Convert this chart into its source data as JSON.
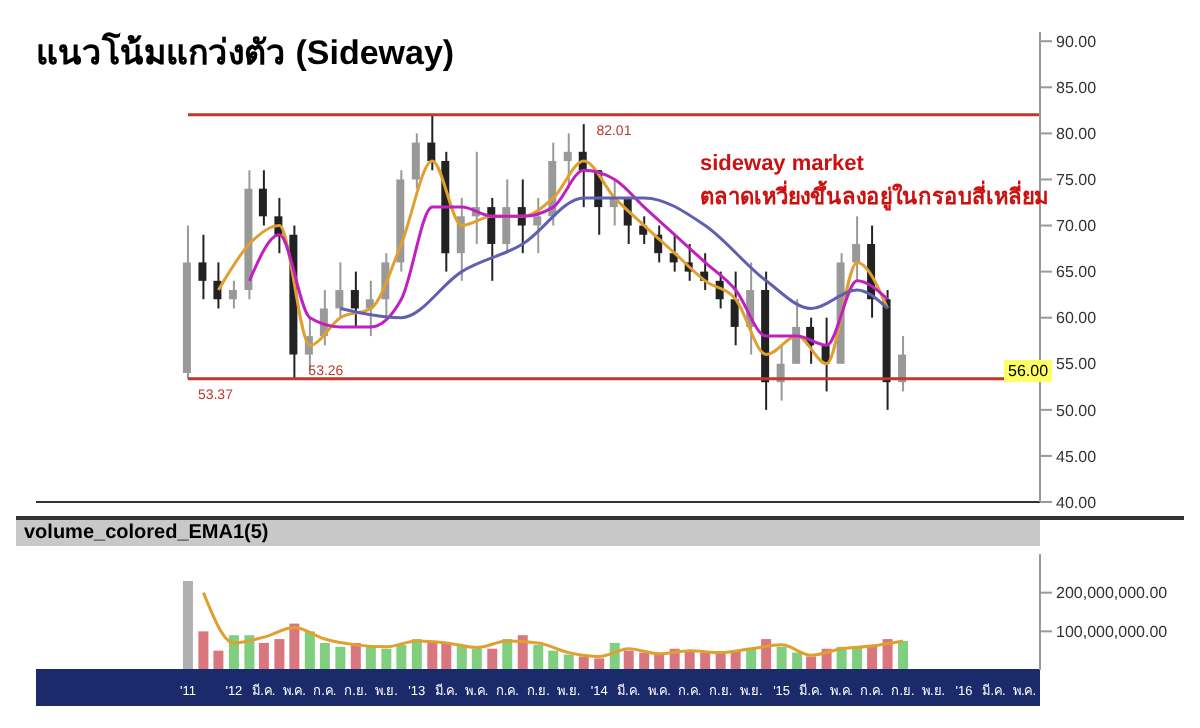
{
  "chart_data": [
    {
      "type": "candlestick",
      "title": "แนวโน้มแกว่งตัว (Sideway)",
      "tick_labels": "y",
      "colors": [
        "#999999",
        "#222222",
        "#222222",
        "#999999",
        "#999999",
        "#222222",
        "#222222",
        "#222222",
        "#999999",
        "#999999",
        "#999999",
        "#222222",
        "#999999",
        "#999999",
        "#999999",
        "#999999",
        "#222222",
        "#222222",
        "#999999",
        "#999999",
        "#222222",
        "#999999",
        "#222222",
        "#999999",
        "#999999",
        "#999999",
        "#222222",
        "#222222",
        "#999999",
        "#222222",
        "#222222",
        "#222222",
        "#222222",
        "#222222",
        "#222222",
        "#222222",
        "#222222",
        "#999999",
        "#222222",
        "#999999",
        "#999999",
        "#222222",
        "#222222",
        "#999999",
        "#999999",
        "#222222",
        "#222222",
        "#999999"
      ],
      "x": [
        "2011-10",
        "2011-11",
        "2011-12",
        "2012-01",
        "2012-02",
        "2012-03",
        "2012-04",
        "2012-05",
        "2012-06",
        "2012-07",
        "2012-08",
        "2012-09",
        "2012-10",
        "2012-11",
        "2012-12",
        "2013-01",
        "2013-02",
        "2013-03",
        "2013-04",
        "2013-05",
        "2013-06",
        "2013-07",
        "2013-08",
        "2013-09",
        "2013-10",
        "2013-11",
        "2013-12",
        "2014-01",
        "2014-02",
        "2014-03",
        "2014-04",
        "2014-05",
        "2014-06",
        "2014-07",
        "2014-08",
        "2014-09",
        "2014-10",
        "2014-11",
        "2014-12",
        "2015-01",
        "2015-02",
        "2015-03",
        "2015-04",
        "2015-05",
        "2015-06",
        "2015-07",
        "2015-08",
        "2015-09"
      ],
      "ohlc": [
        [
          54,
          70,
          53.37,
          66
        ],
        [
          66,
          69,
          62,
          64
        ],
        [
          64,
          66,
          61,
          62
        ],
        [
          62,
          64,
          61,
          63
        ],
        [
          63,
          76,
          62,
          74
        ],
        [
          74,
          76,
          70,
          71
        ],
        [
          71,
          73,
          67,
          69
        ],
        [
          69,
          70,
          53.26,
          56
        ],
        [
          56,
          60,
          54,
          58
        ],
        [
          58,
          63,
          57,
          61
        ],
        [
          61,
          66,
          60,
          63
        ],
        [
          63,
          65,
          59,
          61
        ],
        [
          61,
          64,
          58,
          62
        ],
        [
          62,
          67,
          60,
          66
        ],
        [
          66,
          76,
          65,
          75
        ],
        [
          75,
          80,
          74,
          79
        ],
        [
          79,
          82,
          76,
          77
        ],
        [
          77,
          78,
          65,
          67
        ],
        [
          67,
          73,
          64,
          71
        ],
        [
          71,
          78,
          68,
          72
        ],
        [
          72,
          73,
          64,
          68
        ],
        [
          68,
          75,
          67,
          72
        ],
        [
          72,
          75,
          67,
          70
        ],
        [
          70,
          73,
          67,
          71
        ],
        [
          71,
          79,
          70,
          77
        ],
        [
          77,
          80,
          74,
          78
        ],
        [
          78,
          81,
          72,
          76
        ],
        [
          76,
          76,
          69,
          72
        ],
        [
          72,
          75,
          70,
          73
        ],
        [
          73,
          73,
          68,
          70
        ],
        [
          70,
          71,
          68,
          69
        ],
        [
          69,
          70,
          66,
          67
        ],
        [
          67,
          69,
          65,
          66
        ],
        [
          66,
          68,
          64,
          65
        ],
        [
          65,
          67,
          63,
          64
        ],
        [
          64,
          65,
          61,
          62
        ],
        [
          62,
          65,
          57,
          59
        ],
        [
          59,
          66,
          56,
          63
        ],
        [
          63,
          65,
          50,
          53
        ],
        [
          53,
          57,
          51,
          55
        ],
        [
          55,
          62,
          55,
          59
        ],
        [
          59,
          60,
          55,
          57
        ],
        [
          57,
          60,
          52,
          55
        ],
        [
          55,
          67,
          55,
          66
        ],
        [
          66,
          71,
          64,
          68
        ],
        [
          68,
          70,
          60,
          62
        ],
        [
          62,
          63,
          50,
          53
        ],
        [
          53,
          58,
          52,
          56
        ]
      ],
      "series": [
        {
          "type": "line",
          "color": "#e0a030",
          "x": [
            "2011-12",
            "2012-02",
            "2012-04",
            "2012-06",
            "2012-08",
            "2012-10",
            "2012-12",
            "2013-02",
            "2013-04",
            "2013-06",
            "2013-08",
            "2013-10",
            "2013-12",
            "2014-02",
            "2014-04",
            "2014-06",
            "2014-08",
            "2014-10",
            "2014-12",
            "2015-02",
            "2015-04",
            "2015-06",
            "2015-08"
          ],
          "values": [
            63,
            68,
            70,
            57,
            60,
            61,
            68,
            77,
            70,
            71,
            71,
            73,
            77,
            73,
            70,
            67,
            64,
            62,
            56,
            58,
            55,
            66,
            61
          ]
        },
        {
          "type": "line",
          "color": "#c020c0",
          "x": [
            "2012-02",
            "2012-04",
            "2012-06",
            "2012-08",
            "2012-10",
            "2012-12",
            "2013-02",
            "2013-04",
            "2013-06",
            "2013-08",
            "2013-10",
            "2013-12",
            "2014-02",
            "2014-04",
            "2014-06",
            "2014-08",
            "2014-10",
            "2014-12",
            "2015-02",
            "2015-04",
            "2015-06",
            "2015-08"
          ],
          "values": [
            64,
            69,
            60,
            59,
            59,
            62,
            72,
            72,
            71,
            71,
            72,
            76,
            75,
            72,
            69,
            66,
            63,
            58,
            58,
            57,
            64,
            62
          ]
        },
        {
          "type": "line",
          "color": "#6060b0",
          "x": [
            "2012-08",
            "2012-12",
            "2013-04",
            "2013-08",
            "2013-12",
            "2014-04",
            "2014-08",
            "2014-12",
            "2015-03",
            "2015-06",
            "2015-08"
          ],
          "values": [
            61,
            60,
            65,
            68,
            73,
            73,
            70,
            64,
            61,
            63,
            61
          ]
        }
      ],
      "xlim": [
        "2010-12",
        "2016-06"
      ],
      "ylim": [
        40,
        91
      ],
      "yticks": [
        {
          "value": 40,
          "label": "40.00"
        },
        {
          "value": 45,
          "label": "45.00"
        },
        {
          "value": 50,
          "label": "50.00"
        },
        {
          "value": 55,
          "label": "55.00"
        },
        {
          "value": 60,
          "label": "60.00"
        },
        {
          "value": 65,
          "label": "65.00"
        },
        {
          "value": 70,
          "label": "70.00"
        },
        {
          "value": 75,
          "label": "75.00"
        },
        {
          "value": 80,
          "label": "80.00"
        },
        {
          "value": 85,
          "label": "85.00"
        },
        {
          "value": 90,
          "label": "90.00"
        }
      ],
      "ref_lines": [
        {
          "axis": "y",
          "value": 82.01,
          "label": "82.01",
          "color": "#c0392b"
        },
        {
          "axis": "y",
          "value": 53.37,
          "label": "53.37",
          "color": "#c0392b"
        }
      ],
      "annotations": [
        "sideway market",
        "ตลาดเหวี่ยงขึ้นลงอยู่ในกรอบสี่เหลี่ยม",
        {
          "text": "53.26",
          "x": "2012-05",
          "y": 53.26
        },
        "56.00"
      ]
    },
    {
      "type": "bar",
      "title": "volume_colored_EMA1(5)",
      "series": [
        {
          "type": "bar",
          "x": [
            "2011-10",
            "2011-11",
            "2011-12",
            "2012-01",
            "2012-02",
            "2012-03",
            "2012-04",
            "2012-05",
            "2012-06",
            "2012-07",
            "2012-08",
            "2012-09",
            "2012-10",
            "2012-11",
            "2012-12",
            "2013-01",
            "2013-02",
            "2013-03",
            "2013-04",
            "2013-05",
            "2013-06",
            "2013-07",
            "2013-08",
            "2013-09",
            "2013-10",
            "2013-11",
            "2013-12",
            "2014-01",
            "2014-02",
            "2014-03",
            "2014-04",
            "2014-05",
            "2014-06",
            "2014-07",
            "2014-08",
            "2014-09",
            "2014-10",
            "2014-11",
            "2014-12",
            "2015-01",
            "2015-02",
            "2015-03",
            "2015-04",
            "2015-05",
            "2015-06",
            "2015-07",
            "2015-08",
            "2015-09"
          ],
          "values": [
            230000000,
            100000000,
            50000000,
            90000000,
            90000000,
            70000000,
            80000000,
            120000000,
            100000000,
            70000000,
            60000000,
            70000000,
            60000000,
            55000000,
            65000000,
            80000000,
            75000000,
            70000000,
            65000000,
            55000000,
            55000000,
            80000000,
            90000000,
            65000000,
            50000000,
            40000000,
            35000000,
            30000000,
            70000000,
            50000000,
            45000000,
            40000000,
            55000000,
            50000000,
            45000000,
            45000000,
            50000000,
            55000000,
            80000000,
            60000000,
            45000000,
            35000000,
            55000000,
            60000000,
            60000000,
            65000000,
            80000000,
            75000000
          ],
          "colors": [
            "#b0b0b0",
            "#d9777f",
            "#d9777f",
            "#7fcf7f",
            "#7fcf7f",
            "#d9777f",
            "#d9777f",
            "#d9777f",
            "#7fcf7f",
            "#7fcf7f",
            "#7fcf7f",
            "#d9777f",
            "#7fcf7f",
            "#7fcf7f",
            "#7fcf7f",
            "#7fcf7f",
            "#d9777f",
            "#d9777f",
            "#7fcf7f",
            "#7fcf7f",
            "#d9777f",
            "#7fcf7f",
            "#d9777f",
            "#7fcf7f",
            "#7fcf7f",
            "#7fcf7f",
            "#d9777f",
            "#d9777f",
            "#7fcf7f",
            "#d9777f",
            "#d9777f",
            "#d9777f",
            "#d9777f",
            "#d9777f",
            "#d9777f",
            "#d9777f",
            "#d9777f",
            "#7fcf7f",
            "#d9777f",
            "#7fcf7f",
            "#7fcf7f",
            "#d9777f",
            "#d9777f",
            "#7fcf7f",
            "#7fcf7f",
            "#d9777f",
            "#d9777f",
            "#7fcf7f"
          ]
        },
        {
          "type": "line",
          "color": "#e0a030",
          "x": [
            "2011-11",
            "2012-01",
            "2012-03",
            "2012-05",
            "2012-07",
            "2012-09",
            "2012-11",
            "2013-01",
            "2013-03",
            "2013-05",
            "2013-07",
            "2013-09",
            "2013-11",
            "2014-01",
            "2014-03",
            "2014-05",
            "2014-07",
            "2014-09",
            "2014-11",
            "2015-01",
            "2015-03",
            "2015-05",
            "2015-07",
            "2015-09"
          ],
          "values": [
            200000000,
            70000000,
            85000000,
            110000000,
            80000000,
            65000000,
            60000000,
            75000000,
            70000000,
            58000000,
            75000000,
            70000000,
            45000000,
            35000000,
            55000000,
            42000000,
            50000000,
            45000000,
            55000000,
            65000000,
            38000000,
            55000000,
            62000000,
            75000000
          ]
        }
      ],
      "xlim": [
        "2010-12",
        "2016-06"
      ],
      "xticks": [
        {
          "value": "2011-10",
          "label": "'11"
        },
        {
          "value": "2012-01",
          "label": "'12"
        },
        {
          "value": "2012-03",
          "label": "มี.ค."
        },
        {
          "value": "2012-05",
          "label": "พ.ค."
        },
        {
          "value": "2012-07",
          "label": "ก.ค."
        },
        {
          "value": "2012-09",
          "label": "ก.ย."
        },
        {
          "value": "2012-11",
          "label": "พ.ย."
        },
        {
          "value": "2013-01",
          "label": "'13"
        },
        {
          "value": "2013-03",
          "label": "มี.ค."
        },
        {
          "value": "2013-05",
          "label": "พ.ค."
        },
        {
          "value": "2013-07",
          "label": "ก.ค."
        },
        {
          "value": "2013-09",
          "label": "ก.ย."
        },
        {
          "value": "2013-11",
          "label": "พ.ย."
        },
        {
          "value": "2014-01",
          "label": "'14"
        },
        {
          "value": "2014-03",
          "label": "มี.ค."
        },
        {
          "value": "2014-05",
          "label": "พ.ค."
        },
        {
          "value": "2014-07",
          "label": "ก.ค."
        },
        {
          "value": "2014-09",
          "label": "ก.ย."
        },
        {
          "value": "2014-11",
          "label": "พ.ย."
        },
        {
          "value": "2015-01",
          "label": "'15"
        },
        {
          "value": "2015-03",
          "label": "มี.ค."
        },
        {
          "value": "2015-05",
          "label": "พ.ค."
        },
        {
          "value": "2015-07",
          "label": "ก.ค."
        },
        {
          "value": "2015-09",
          "label": "ก.ย."
        },
        {
          "value": "2015-11",
          "label": "พ.ย."
        },
        {
          "value": "2016-01",
          "label": "'16"
        },
        {
          "value": "2016-03",
          "label": "มี.ค."
        },
        {
          "value": "2016-05",
          "label": "พ.ค."
        }
      ],
      "ylim": [
        0,
        300000000
      ],
      "yticks": [
        {
          "value": 100000000,
          "label": "100,000,000.00"
        },
        {
          "value": 200000000,
          "label": "200,000,000.00"
        }
      ]
    }
  ]
}
